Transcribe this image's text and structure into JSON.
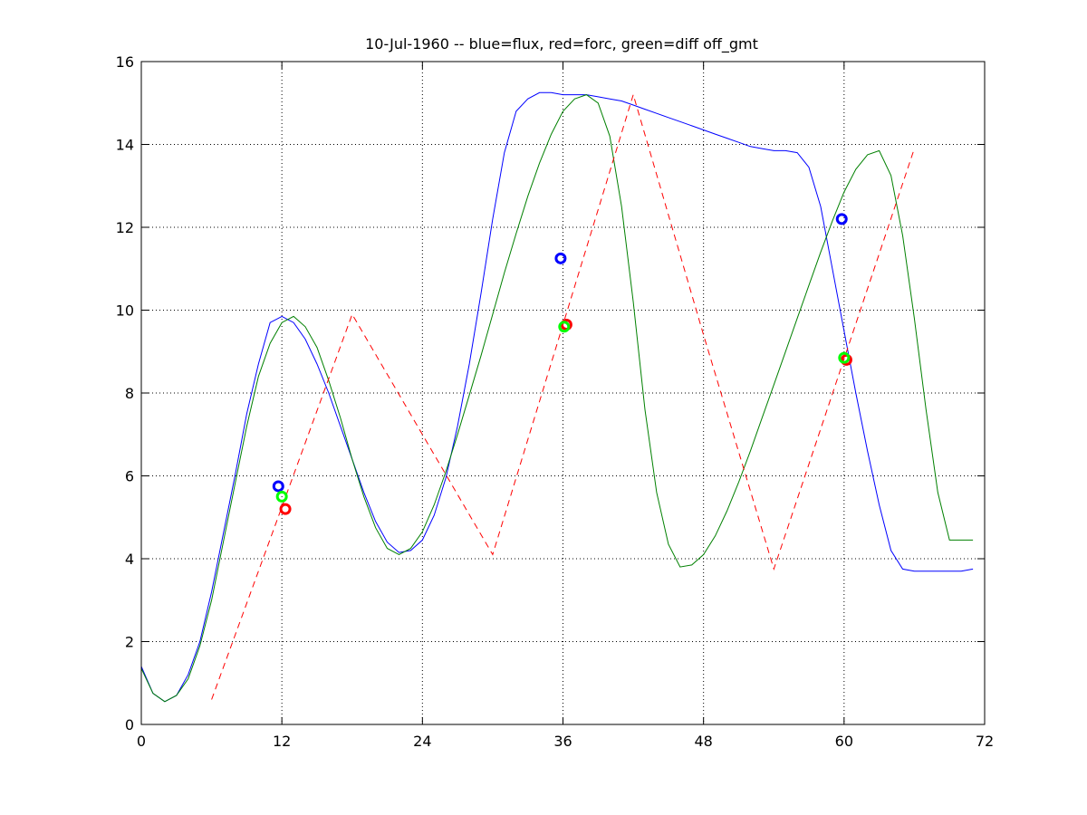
{
  "chart_data": {
    "type": "line",
    "title": "10-Jul-1960 -- blue=flux, red=forc, green=diff off_gmt",
    "xlabel": "",
    "ylabel": "",
    "xlim": [
      0,
      72
    ],
    "ylim": [
      0,
      16
    ],
    "xticks": [
      0,
      12,
      24,
      36,
      48,
      60,
      72
    ],
    "yticks": [
      0,
      2,
      4,
      6,
      8,
      10,
      12,
      14,
      16
    ],
    "grid": true,
    "series": [
      {
        "color": "#0000ff",
        "style": "solid",
        "x": [
          0,
          1,
          2,
          3,
          4,
          5,
          6,
          7,
          8,
          9,
          10,
          11,
          12,
          13,
          14,
          15,
          16,
          17,
          18,
          19,
          20,
          21,
          22,
          23,
          24,
          25,
          26,
          27,
          28,
          29,
          30,
          31,
          32,
          33,
          34,
          35,
          36,
          37,
          38,
          39,
          40,
          41,
          42,
          43,
          44,
          45,
          46,
          47,
          48,
          49,
          50,
          51,
          52,
          53,
          54,
          55,
          56,
          57,
          58,
          59,
          60,
          61,
          62,
          63,
          64,
          65,
          66,
          67,
          68,
          69,
          70,
          71
        ],
        "y": [
          1.4,
          0.75,
          0.55,
          0.7,
          1.2,
          2.0,
          3.2,
          4.6,
          6.0,
          7.5,
          8.7,
          9.7,
          9.85,
          9.7,
          9.3,
          8.7,
          8.0,
          7.2,
          6.4,
          5.6,
          4.9,
          4.4,
          4.15,
          4.2,
          4.45,
          5.05,
          5.95,
          7.2,
          8.7,
          10.4,
          12.2,
          13.8,
          14.8,
          15.1,
          15.25,
          15.25,
          15.2,
          15.2,
          15.2,
          15.15,
          15.1,
          15.05,
          14.95,
          14.85,
          14.75,
          14.65,
          14.55,
          14.45,
          14.35,
          14.25,
          14.15,
          14.05,
          13.95,
          13.9,
          13.85,
          13.85,
          13.8,
          13.45,
          12.5,
          11.0,
          9.5,
          8.0,
          6.6,
          5.3,
          4.2,
          3.75,
          3.7,
          3.7,
          3.7,
          3.7,
          3.7,
          3.75
        ]
      },
      {
        "color": "#008000",
        "style": "solid",
        "x": [
          0,
          1,
          2,
          3,
          4,
          5,
          6,
          7,
          8,
          9,
          10,
          11,
          12,
          13,
          14,
          15,
          16,
          17,
          18,
          19,
          20,
          21,
          22,
          23,
          24,
          25,
          26,
          27,
          28,
          29,
          30,
          31,
          32,
          33,
          34,
          35,
          36,
          37,
          38,
          39,
          40,
          41,
          42,
          43,
          44,
          45,
          46,
          47,
          48,
          49,
          50,
          51,
          52,
          53,
          54,
          55,
          56,
          57,
          58,
          59,
          60,
          61,
          62,
          63,
          64,
          65,
          66,
          67,
          68,
          69,
          70,
          71
        ],
        "y": [
          1.35,
          0.75,
          0.55,
          0.7,
          1.1,
          1.9,
          3.0,
          4.4,
          5.8,
          7.2,
          8.4,
          9.2,
          9.7,
          9.85,
          9.6,
          9.1,
          8.3,
          7.4,
          6.4,
          5.5,
          4.75,
          4.25,
          4.1,
          4.25,
          4.65,
          5.3,
          6.1,
          7.0,
          7.95,
          8.9,
          9.9,
          10.9,
          11.85,
          12.75,
          13.55,
          14.25,
          14.8,
          15.1,
          15.2,
          15.0,
          14.2,
          12.5,
          10.2,
          7.6,
          5.6,
          4.35,
          3.8,
          3.85,
          4.1,
          4.55,
          5.15,
          5.85,
          6.6,
          7.4,
          8.2,
          9.0,
          9.8,
          10.6,
          11.4,
          12.15,
          12.85,
          13.4,
          13.75,
          13.85,
          13.25,
          11.8,
          9.8,
          7.6,
          5.6,
          4.45,
          4.45,
          4.45
        ]
      },
      {
        "color": "#ff0000",
        "style": "dashed",
        "x": [
          6,
          18,
          24,
          30,
          42,
          48,
          54,
          66
        ],
        "y": [
          0.6,
          9.9,
          7.0,
          4.1,
          15.2,
          9.4,
          3.75,
          13.9
        ]
      }
    ],
    "markers": [
      {
        "x": 11.7,
        "y": 5.75,
        "color": "#0000ff"
      },
      {
        "x": 12.0,
        "y": 5.5,
        "color": "#00ff00"
      },
      {
        "x": 12.3,
        "y": 5.2,
        "color": "#ff0000"
      },
      {
        "x": 35.8,
        "y": 11.25,
        "color": "#0000ff"
      },
      {
        "x": 36.3,
        "y": 9.65,
        "color": "#ff0000"
      },
      {
        "x": 36.1,
        "y": 9.6,
        "color": "#00ff00"
      },
      {
        "x": 59.8,
        "y": 12.2,
        "color": "#0000ff"
      },
      {
        "x": 60.2,
        "y": 8.8,
        "color": "#ff0000"
      },
      {
        "x": 60.0,
        "y": 8.85,
        "color": "#00ff00"
      }
    ]
  }
}
